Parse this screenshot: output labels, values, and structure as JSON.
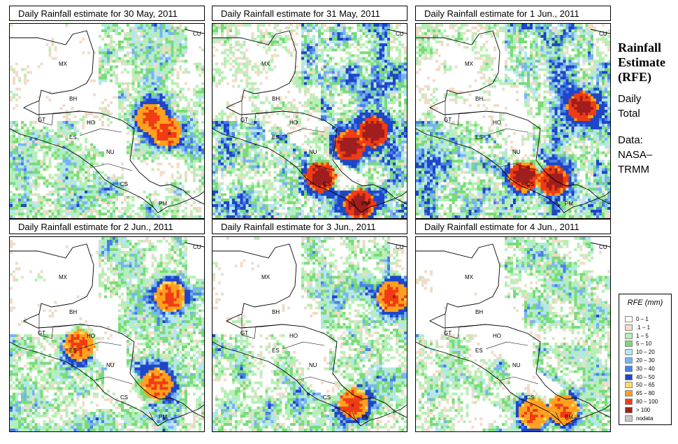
{
  "panels": [
    {
      "title": "Daily Rainfall estimate for  30 May, 2011",
      "seed": 11,
      "hot": [
        [
          0.72,
          0.48
        ],
        [
          0.8,
          0.55
        ]
      ],
      "intensity": 0.5
    },
    {
      "title": "Daily Rainfall estimate for  31 May, 2011",
      "seed": 23,
      "hot": [
        [
          0.82,
          0.55
        ],
        [
          0.7,
          0.62
        ],
        [
          0.75,
          0.92
        ],
        [
          0.55,
          0.78
        ]
      ],
      "intensity": 0.95
    },
    {
      "title": "Daily Rainfall estimate for  1 Jun., 2011",
      "seed": 37,
      "hot": [
        [
          0.85,
          0.42
        ],
        [
          0.55,
          0.78
        ],
        [
          0.7,
          0.8
        ]
      ],
      "intensity": 0.85
    },
    {
      "title": "Daily Rainfall estimate for  2 Jun., 2011",
      "seed": 41,
      "hot": [
        [
          0.82,
          0.3
        ],
        [
          0.75,
          0.75
        ],
        [
          0.35,
          0.55
        ]
      ],
      "intensity": 0.45
    },
    {
      "title": "Daily Rainfall estimate for  3 Jun., 2011",
      "seed": 53,
      "hot": [
        [
          0.92,
          0.3
        ],
        [
          0.72,
          0.85
        ]
      ],
      "intensity": 0.5
    },
    {
      "title": "Daily Rainfall estimate for  4 Jun., 2011",
      "seed": 67,
      "hot": [
        [
          0.6,
          0.9
        ],
        [
          0.75,
          0.88
        ]
      ],
      "intensity": 0.4
    }
  ],
  "countries": {
    "mx": "MX",
    "cu": "CU",
    "bh": "BH",
    "gt": "GT",
    "ho": "HO",
    "es": "ES",
    "nu": "NU",
    "cs": "CS",
    "pm": "PM"
  },
  "sidebar": {
    "title_line1": "Rainfall",
    "title_line2": "Estimate",
    "title_line3": "(RFE)",
    "daily_line1": "Daily",
    "daily_line2": "Total",
    "data_line1": "Data:",
    "data_line2": "NASA–",
    "data_line3": "TRMM"
  },
  "legend": {
    "title": "RFE (mm)",
    "items": [
      {
        "label": "0 – 1",
        "color": "#ffffff"
      },
      {
        "label": ".1 – 1",
        "color": "#f0dcc8"
      },
      {
        "label": "1 – 5",
        "color": "#b4f0b4"
      },
      {
        "label": "5 – 10",
        "color": "#78dc78"
      },
      {
        "label": "10 – 20",
        "color": "#b4e6f0"
      },
      {
        "label": "20 – 30",
        "color": "#78b4f0"
      },
      {
        "label": "30 – 40",
        "color": "#4680e6"
      },
      {
        "label": "40 – 50",
        "color": "#1e46c8"
      },
      {
        "label": "50 – 65",
        "color": "#ffdc64"
      },
      {
        "label": "65 – 80",
        "color": "#ffa01e"
      },
      {
        "label": "80 – 100",
        "color": "#f03c14"
      },
      {
        "label": "> 100",
        "color": "#a01e1e"
      },
      {
        "label": "nodata",
        "color": "#c8c8c8"
      }
    ]
  }
}
